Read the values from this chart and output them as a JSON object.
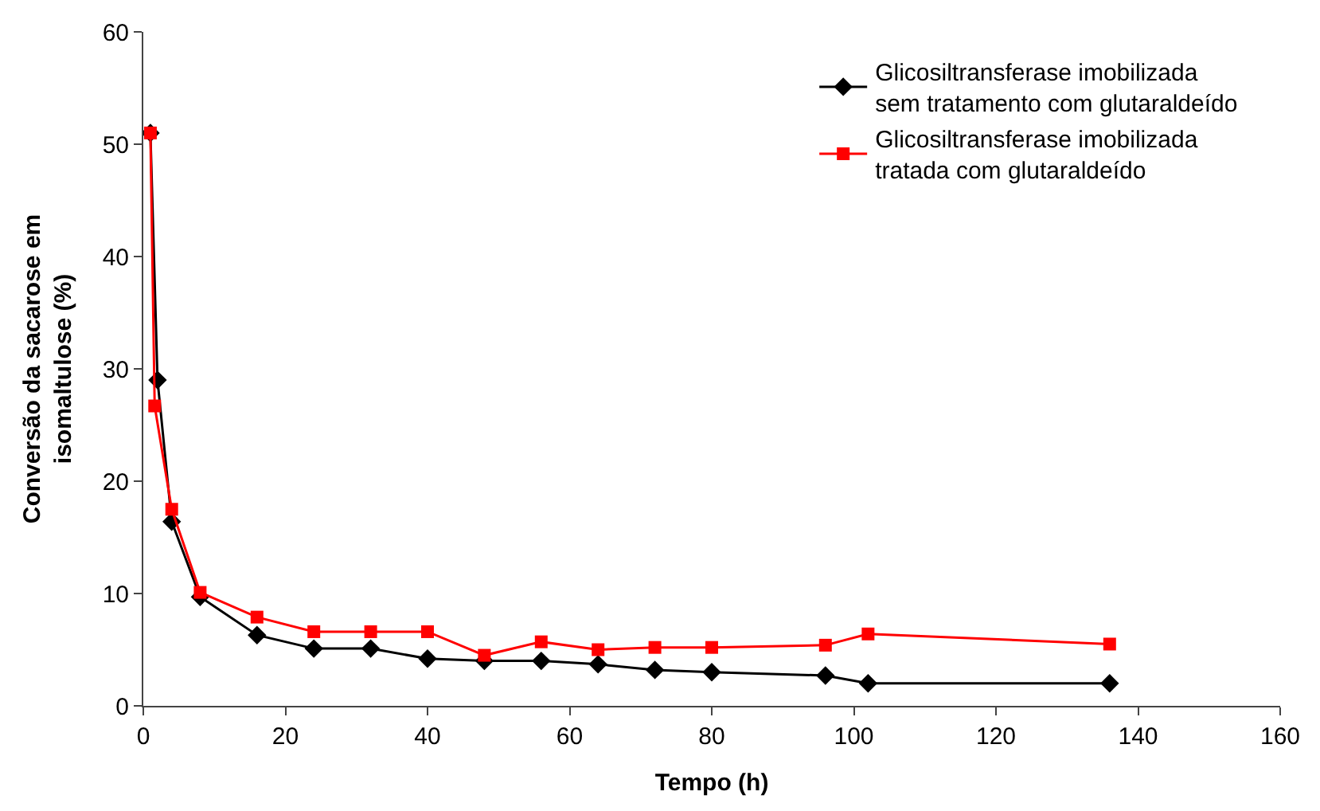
{
  "chart_data": {
    "type": "line",
    "xlabel": "Tempo (h)",
    "ylabel": "Conversão da sacarose em\nisomaltulose (%)",
    "xlim": [
      0,
      160
    ],
    "xticks": [
      0,
      20,
      40,
      60,
      80,
      100,
      120,
      140,
      160
    ],
    "ylim": [
      0,
      60
    ],
    "yticks": [
      0,
      10,
      20,
      30,
      40,
      50,
      60
    ],
    "grid": false,
    "legend": "top right",
    "line_style": "solid",
    "series": [
      {
        "name": "Glicosiltransferase imobilizada\nsem tratamento com glutaraldeído",
        "color": "#000000",
        "marker": "diamond",
        "x": [
          1,
          2,
          4,
          8,
          16,
          24,
          32,
          40,
          48,
          56,
          64,
          72,
          80,
          96,
          102,
          136
        ],
        "values": [
          51,
          29,
          16.4,
          9.7,
          6.3,
          5.1,
          5.1,
          4.2,
          4.0,
          4.0,
          3.7,
          3.2,
          3.0,
          2.7,
          2.0,
          2.0
        ]
      },
      {
        "name": "Glicosiltransferase imobilizada\ntratada com glutaraldeído",
        "color": "#ff0000",
        "marker": "square",
        "x": [
          1,
          1.6,
          4,
          8,
          16,
          24,
          32,
          40,
          48,
          56,
          64,
          72,
          80,
          96,
          102,
          136
        ],
        "values": [
          51,
          26.7,
          17.5,
          10.1,
          7.9,
          6.6,
          6.6,
          6.6,
          4.5,
          5.7,
          5.0,
          5.2,
          5.2,
          5.4,
          6.4,
          5.5
        ]
      }
    ]
  }
}
